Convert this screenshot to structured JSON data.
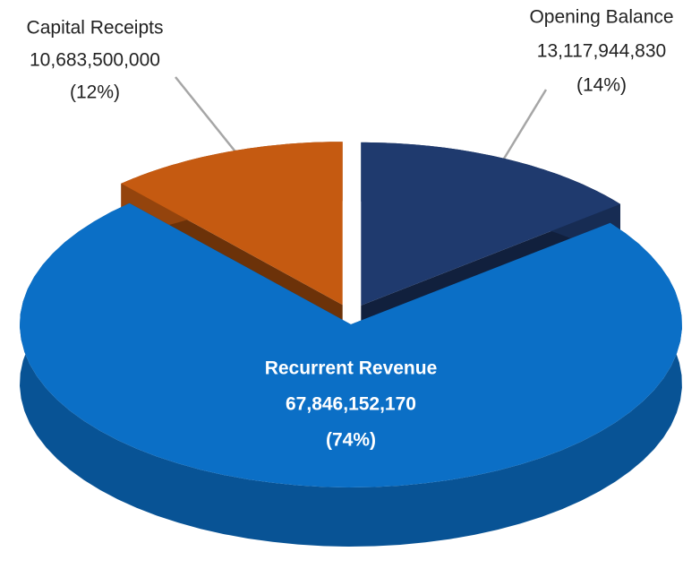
{
  "chart_data": {
    "type": "pie",
    "categories": [
      "Opening Balance",
      "Recurrent Revenue",
      "Capital Receipts"
    ],
    "values": [
      13117944830,
      67846152170,
      10683500000
    ],
    "value_labels": [
      "13,117,944,830",
      "67,846,152,170",
      "10,683,500,000"
    ],
    "percents": [
      14,
      74,
      12
    ],
    "percent_labels": [
      "(14%)",
      "(74%)",
      "(12%)"
    ],
    "colors": [
      "#1f3a6e",
      "#0b6fc6",
      "#c55a11"
    ],
    "start_angle": 0,
    "direction": "clockwise"
  }
}
